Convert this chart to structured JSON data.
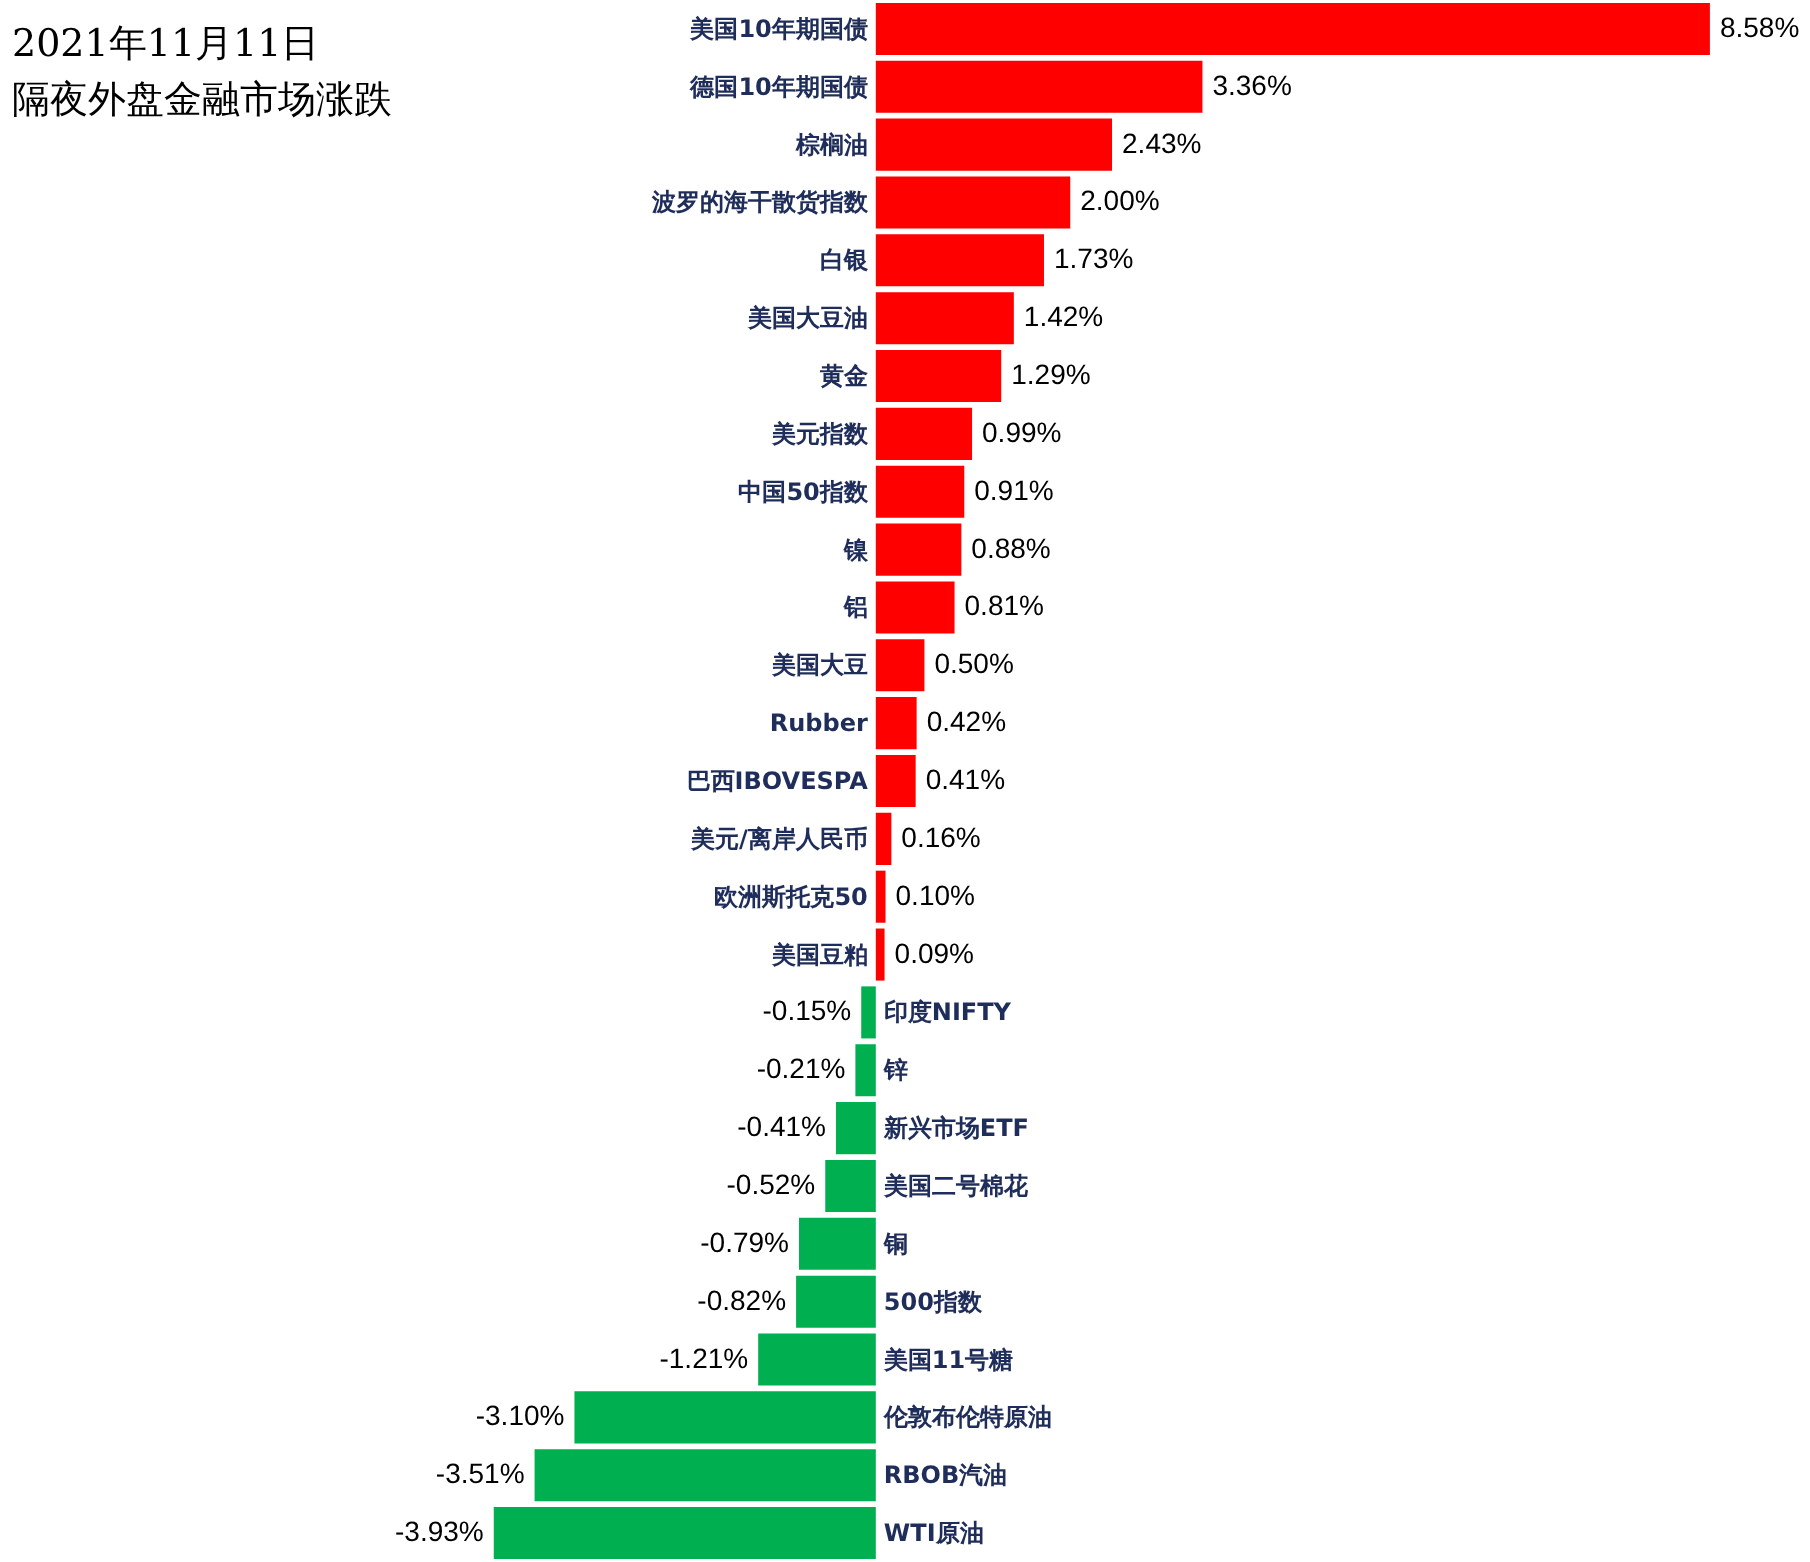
{
  "chart_data": {
    "type": "bar",
    "orientation": "horizontal",
    "title": "2021年11月11日",
    "subtitle": "隔夜外盘金融市场涨跌",
    "categories": [
      "美国10年期国债",
      "德国10年期国债",
      "棕榈油",
      "波罗的海干散货指数",
      "白银",
      "美国大豆油",
      "黄金",
      "美元指数",
      "中国50指数",
      "镍",
      "铝",
      "美国大豆",
      "Rubber",
      "巴西IBOVESPA",
      "美元/离岸人民币",
      "欧洲斯托克50",
      "美国豆粕",
      "印度NIFTY",
      "锌",
      "新兴市场ETF",
      "美国二号棉花",
      "铜",
      "500指数",
      "美国11号糖",
      "伦敦布伦特原油",
      "RBOB汽油",
      "WTI原油"
    ],
    "values": [
      8.58,
      3.36,
      2.43,
      2.0,
      1.73,
      1.42,
      1.29,
      0.99,
      0.91,
      0.88,
      0.81,
      0.5,
      0.42,
      0.41,
      0.16,
      0.1,
      0.09,
      -0.15,
      -0.21,
      -0.41,
      -0.52,
      -0.79,
      -0.82,
      -1.21,
      -3.1,
      -3.51,
      -3.93
    ],
    "value_labels": [
      "8.58%",
      "3.36%",
      "2.43%",
      "2.00%",
      "1.73%",
      "1.42%",
      "1.29%",
      "0.99%",
      "0.91%",
      "0.88%",
      "0.81%",
      "0.50%",
      "0.42%",
      "0.41%",
      "0.16%",
      "0.10%",
      "0.09%",
      "-0.15%",
      "-0.21%",
      "-0.41%",
      "-0.52%",
      "-0.79%",
      "-0.82%",
      "-1.21%",
      "-3.10%",
      "-3.51%",
      "-3.93%"
    ],
    "colors": [
      "#ff0000",
      "#ff0000",
      "#ff0000",
      "#ff0000",
      "#ff0000",
      "#ff0000",
      "#ff0000",
      "#ff0000",
      "#ff0000",
      "#ff0000",
      "#ff0000",
      "#ff0000",
      "#ff0000",
      "#ff0000",
      "#ff0000",
      "#ff0000",
      "#ff0000",
      "#00b050",
      "#00b050",
      "#00b050",
      "#00b050",
      "#00b050",
      "#00b050",
      "#00b050",
      "#00b050",
      "#00b050",
      "#00b050"
    ],
    "grid": false
  }
}
